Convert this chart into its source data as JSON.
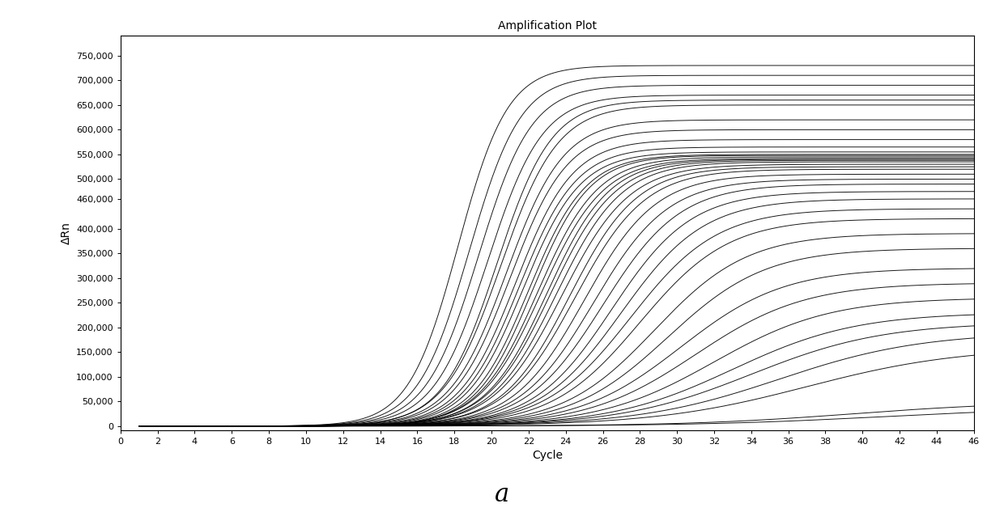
{
  "title": "Amplification Plot",
  "xlabel": "Cycle",
  "ylabel": "ΔRn",
  "xlim": [
    0,
    46
  ],
  "ylim": [
    -8000,
    790000
  ],
  "xticks": [
    0,
    2,
    4,
    6,
    8,
    10,
    12,
    14,
    16,
    18,
    20,
    22,
    24,
    26,
    28,
    30,
    32,
    34,
    36,
    38,
    40,
    42,
    44,
    46
  ],
  "yticks": [
    0,
    50000,
    100000,
    150000,
    200000,
    250000,
    300000,
    350000,
    400000,
    460000,
    500000,
    550000,
    600000,
    650000,
    700000,
    750000
  ],
  "ytick_labels": [
    "0",
    "50,000",
    "100,000",
    "150,000",
    "200,000",
    "250,000",
    "300,000",
    "350,000",
    "400,000",
    "460,000",
    "500,000",
    "550,000",
    "600,000",
    "650,000",
    "700,000",
    "750,000"
  ],
  "background_color": "#ffffff",
  "line_color": "#000000",
  "caption": "a",
  "curves": [
    {
      "midpoint": 18.2,
      "plateau": 730000,
      "steepness": 0.75
    },
    {
      "midpoint": 18.8,
      "plateau": 710000,
      "steepness": 0.72
    },
    {
      "midpoint": 19.3,
      "plateau": 690000,
      "steepness": 0.7
    },
    {
      "midpoint": 19.8,
      "plateau": 670000,
      "steepness": 0.68
    },
    {
      "midpoint": 20.3,
      "plateau": 660000,
      "steepness": 0.68
    },
    {
      "midpoint": 20.5,
      "plateau": 650000,
      "steepness": 0.65
    },
    {
      "midpoint": 20.8,
      "plateau": 620000,
      "steepness": 0.65
    },
    {
      "midpoint": 21.0,
      "plateau": 600000,
      "steepness": 0.65
    },
    {
      "midpoint": 21.3,
      "plateau": 580000,
      "steepness": 0.65
    },
    {
      "midpoint": 21.5,
      "plateau": 565000,
      "steepness": 0.65
    },
    {
      "midpoint": 21.7,
      "plateau": 555000,
      "steepness": 0.65
    },
    {
      "midpoint": 22.0,
      "plateau": 550000,
      "steepness": 0.65
    },
    {
      "midpoint": 22.2,
      "plateau": 548000,
      "steepness": 0.65
    },
    {
      "midpoint": 22.5,
      "plateau": 545000,
      "steepness": 0.62
    },
    {
      "midpoint": 22.7,
      "plateau": 542000,
      "steepness": 0.6
    },
    {
      "midpoint": 23.0,
      "plateau": 540000,
      "steepness": 0.6
    },
    {
      "midpoint": 23.2,
      "plateau": 538000,
      "steepness": 0.58
    },
    {
      "midpoint": 23.5,
      "plateau": 535000,
      "steepness": 0.57
    },
    {
      "midpoint": 23.8,
      "plateau": 530000,
      "steepness": 0.55
    },
    {
      "midpoint": 24.2,
      "plateau": 525000,
      "steepness": 0.55
    },
    {
      "midpoint": 24.5,
      "plateau": 520000,
      "steepness": 0.53
    },
    {
      "midpoint": 25.0,
      "plateau": 510000,
      "steepness": 0.52
    },
    {
      "midpoint": 25.5,
      "plateau": 500000,
      "steepness": 0.5
    },
    {
      "midpoint": 26.0,
      "plateau": 490000,
      "steepness": 0.48
    },
    {
      "midpoint": 26.5,
      "plateau": 475000,
      "steepness": 0.47
    },
    {
      "midpoint": 27.0,
      "plateau": 460000,
      "steepness": 0.45
    },
    {
      "midpoint": 27.5,
      "plateau": 440000,
      "steepness": 0.43
    },
    {
      "midpoint": 28.0,
      "plateau": 420000,
      "steepness": 0.42
    },
    {
      "midpoint": 28.8,
      "plateau": 390000,
      "steepness": 0.4
    },
    {
      "midpoint": 29.5,
      "plateau": 360000,
      "steepness": 0.38
    },
    {
      "midpoint": 30.2,
      "plateau": 320000,
      "steepness": 0.36
    },
    {
      "midpoint": 31.0,
      "plateau": 290000,
      "steepness": 0.34
    },
    {
      "midpoint": 32.0,
      "plateau": 260000,
      "steepness": 0.32
    },
    {
      "midpoint": 33.0,
      "plateau": 230000,
      "steepness": 0.3
    },
    {
      "midpoint": 34.0,
      "plateau": 210000,
      "steepness": 0.28
    },
    {
      "midpoint": 35.5,
      "plateau": 190000,
      "steepness": 0.26
    },
    {
      "midpoint": 37.0,
      "plateau": 160000,
      "steepness": 0.24
    },
    {
      "midpoint": 39.5,
      "plateau": 50000,
      "steepness": 0.22
    },
    {
      "midpoint": 41.0,
      "plateau": 38000,
      "steepness": 0.2
    }
  ]
}
